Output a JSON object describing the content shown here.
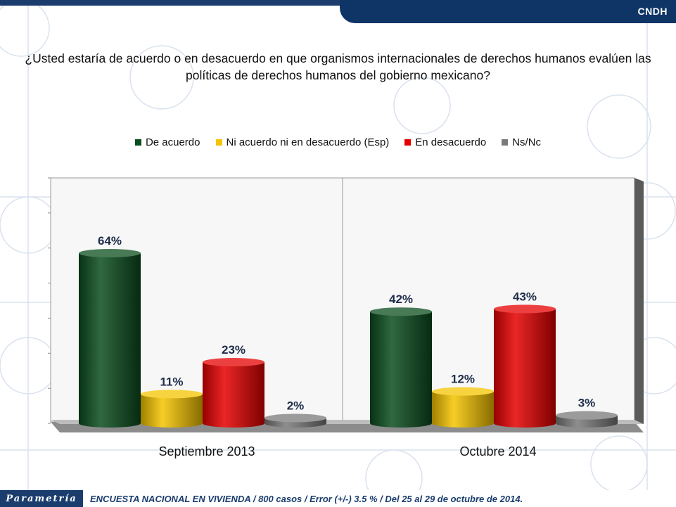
{
  "header": {
    "brand": "CNDH"
  },
  "question": "¿Usted estaría de acuerdo o en desacuerdo en que organismos internacionales de derechos humanos evalúen las políticas de derechos humanos del gobierno mexicano?",
  "chart_data": {
    "type": "bar",
    "categories": [
      "Septiembre 2013",
      "Octubre 2014"
    ],
    "series": [
      {
        "name": "De acuerdo",
        "values": [
          64,
          42
        ],
        "color": "#0b4d1e"
      },
      {
        "name": "Ni acuerdo ni en desacuerdo (Esp)",
        "values": [
          11,
          12
        ],
        "color": "#f5c400"
      },
      {
        "name": "En desacuerdo",
        "values": [
          23,
          43
        ],
        "color": "#e60000"
      },
      {
        "name": "Ns/Nc",
        "values": [
          2,
          3
        ],
        "color": "#7a7a7a"
      }
    ],
    "value_suffix": "%",
    "ylim": [
      0,
      70
    ],
    "grid": false,
    "legend_position": "top"
  },
  "footer": {
    "logo": "Parametría",
    "text": "ENCUESTA NACIONAL EN VIVIENDA / 800 casos / Error (+/-) 3.5 % / Del 25 al 29 de octubre de 2014."
  }
}
